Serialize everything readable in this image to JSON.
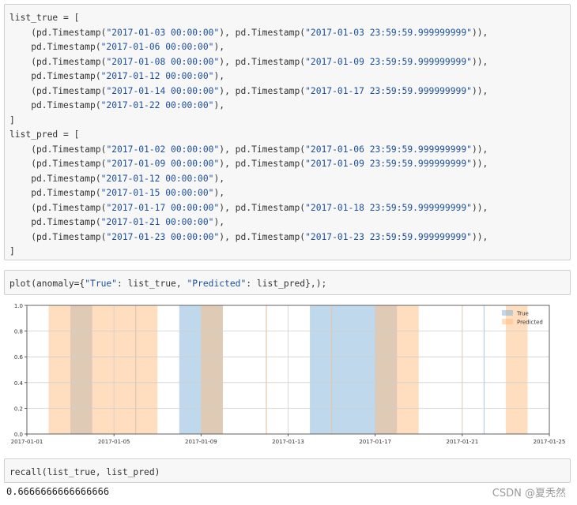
{
  "cells": [
    {
      "lines": [
        [
          "list_true = ["
        ],
        [
          "    (pd.Timestamp(",
          {
            "s": "\"2017-01-03 00:00:00\""
          },
          "), pd.Timestamp(",
          {
            "s": "\"2017-01-03 23:59:59.999999999\""
          },
          ")),"
        ],
        [
          "    pd.Timestamp(",
          {
            "s": "\"2017-01-06 00:00:00\""
          },
          "),"
        ],
        [
          "    (pd.Timestamp(",
          {
            "s": "\"2017-01-08 00:00:00\""
          },
          "), pd.Timestamp(",
          {
            "s": "\"2017-01-09 23:59:59.999999999\""
          },
          ")),"
        ],
        [
          "    pd.Timestamp(",
          {
            "s": "\"2017-01-12 00:00:00\""
          },
          "),"
        ],
        [
          "    (pd.Timestamp(",
          {
            "s": "\"2017-01-14 00:00:00\""
          },
          "), pd.Timestamp(",
          {
            "s": "\"2017-01-17 23:59:59.999999999\""
          },
          ")),"
        ],
        [
          "    pd.Timestamp(",
          {
            "s": "\"2017-01-22 00:00:00\""
          },
          "),"
        ],
        [
          "]"
        ],
        [
          "list_pred = ["
        ],
        [
          "    (pd.Timestamp(",
          {
            "s": "\"2017-01-02 00:00:00\""
          },
          "), pd.Timestamp(",
          {
            "s": "\"2017-01-06 23:59:59.999999999\""
          },
          ")),"
        ],
        [
          "    (pd.Timestamp(",
          {
            "s": "\"2017-01-09 00:00:00\""
          },
          "), pd.Timestamp(",
          {
            "s": "\"2017-01-09 23:59:59.999999999\""
          },
          ")),"
        ],
        [
          "    pd.Timestamp(",
          {
            "s": "\"2017-01-12 00:00:00\""
          },
          "),"
        ],
        [
          "    pd.Timestamp(",
          {
            "s": "\"2017-01-15 00:00:00\""
          },
          "),"
        ],
        [
          "    (pd.Timestamp(",
          {
            "s": "\"2017-01-17 00:00:00\""
          },
          "), pd.Timestamp(",
          {
            "s": "\"2017-01-18 23:59:59.999999999\""
          },
          ")),"
        ],
        [
          "    pd.Timestamp(",
          {
            "s": "\"2017-01-21 00:00:00\""
          },
          "),"
        ],
        [
          "    (pd.Timestamp(",
          {
            "s": "\"2017-01-23 00:00:00\""
          },
          "), pd.Timestamp(",
          {
            "s": "\"2017-01-23 23:59:59.999999999\""
          },
          ")),"
        ],
        [
          "]"
        ]
      ]
    },
    {
      "lines": [
        [
          "plot(anomaly={",
          {
            "s": "\"True\""
          },
          ": list_true, ",
          {
            "s": "\"Predicted\""
          },
          ": list_pred},);"
        ]
      ]
    },
    {
      "lines": [
        [
          "recall(list_true, list_pred)"
        ]
      ]
    }
  ],
  "output_text": "0.6666666666666666",
  "watermark": "CSDN @夏秃然",
  "colors": {
    "true_series": "#7fb2d8",
    "pred_series": "#ffbb80",
    "overlap": "#c6b19e",
    "string": "#1a4f9b"
  },
  "chart_data": {
    "type": "area",
    "x_type": "date",
    "xlim": [
      "2017-01-01",
      "2017-01-25"
    ],
    "ylim": [
      0,
      1.0
    ],
    "xticks": [
      "2017-01-01",
      "2017-01-05",
      "2017-01-09",
      "2017-01-13",
      "2017-01-17",
      "2017-01-21",
      "2017-01-25"
    ],
    "yticks": [
      "0.0",
      "0.2",
      "0.4",
      "0.6",
      "0.8",
      "1.0"
    ],
    "grid": true,
    "legend_position": "top-right",
    "series": [
      {
        "name": "True",
        "color": "#7fb2d8",
        "spans": [
          [
            "2017-01-03",
            "2017-01-04"
          ],
          [
            "2017-01-06",
            "2017-01-06"
          ],
          [
            "2017-01-08",
            "2017-01-10"
          ],
          [
            "2017-01-12",
            "2017-01-12"
          ],
          [
            "2017-01-14",
            "2017-01-18"
          ],
          [
            "2017-01-22",
            "2017-01-22"
          ]
        ]
      },
      {
        "name": "Predicted",
        "color": "#ffbb80",
        "spans": [
          [
            "2017-01-02",
            "2017-01-07"
          ],
          [
            "2017-01-09",
            "2017-01-10"
          ],
          [
            "2017-01-12",
            "2017-01-12"
          ],
          [
            "2017-01-15",
            "2017-01-15"
          ],
          [
            "2017-01-17",
            "2017-01-19"
          ],
          [
            "2017-01-21",
            "2017-01-21"
          ],
          [
            "2017-01-23",
            "2017-01-24"
          ]
        ]
      }
    ]
  }
}
